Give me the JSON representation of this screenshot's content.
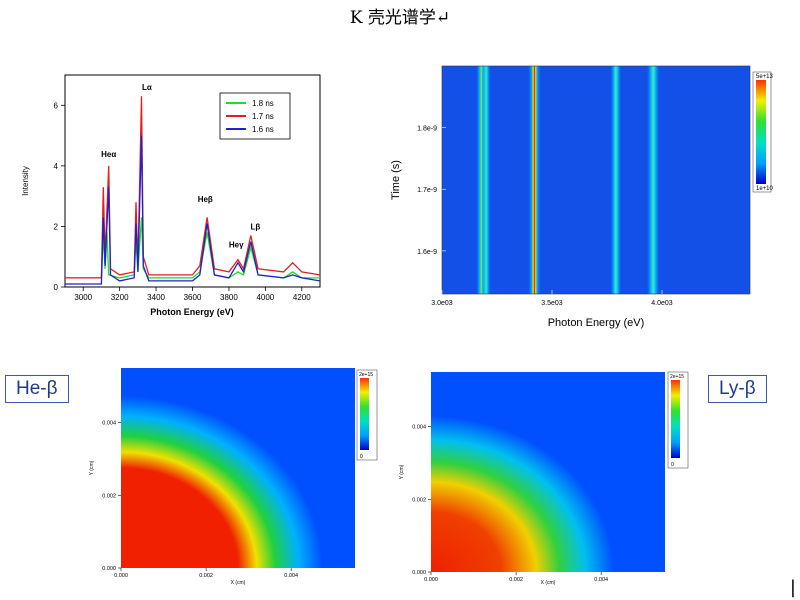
{
  "page": {
    "title": "K 壳光谱学↵",
    "edge_mark": "|"
  },
  "chart_data": [
    {
      "type": "line",
      "xlabel": "Photon Energy (eV)",
      "ylabel": "Intensity",
      "xlim": [
        2900,
        4300
      ],
      "ylim": [
        0,
        7
      ],
      "xticks": [
        "3000",
        "3200",
        "3400",
        "3600",
        "3800",
        "4000",
        "4200"
      ],
      "yticks": [
        "0",
        "2",
        "4",
        "6"
      ],
      "legend": {
        "position": "top-right"
      },
      "series": [
        {
          "name": "1.8 ns",
          "color": "#22dd22",
          "points": [
            [
              2900,
              0.3
            ],
            [
              3100,
              0.3
            ],
            [
              3110,
              1.7
            ],
            [
              3120,
              0.6
            ],
            [
              3130,
              1.8
            ],
            [
              3140,
              0.4
            ],
            [
              3200,
              0.3
            ],
            [
              3280,
              0.4
            ],
            [
              3290,
              1.6
            ],
            [
              3300,
              0.5
            ],
            [
              3320,
              2.3
            ],
            [
              3330,
              0.6
            ],
            [
              3360,
              0.3
            ],
            [
              3600,
              0.3
            ],
            [
              3640,
              0.5
            ],
            [
              3680,
              1.8
            ],
            [
              3720,
              0.4
            ],
            [
              3800,
              0.3
            ],
            [
              3850,
              0.5
            ],
            [
              3880,
              0.4
            ],
            [
              3920,
              1.3
            ],
            [
              3960,
              0.4
            ],
            [
              4100,
              0.3
            ],
            [
              4150,
              0.5
            ],
            [
              4200,
              0.3
            ],
            [
              4300,
              0.3
            ]
          ]
        },
        {
          "name": "1.7 ns",
          "color": "#e02020",
          "points": [
            [
              2900,
              0.3
            ],
            [
              3100,
              0.3
            ],
            [
              3110,
              3.3
            ],
            [
              3120,
              1.0
            ],
            [
              3140,
              4.0
            ],
            [
              3150,
              0.6
            ],
            [
              3200,
              0.4
            ],
            [
              3280,
              0.5
            ],
            [
              3290,
              2.8
            ],
            [
              3300,
              0.7
            ],
            [
              3320,
              6.3
            ],
            [
              3330,
              1.0
            ],
            [
              3360,
              0.4
            ],
            [
              3600,
              0.4
            ],
            [
              3640,
              0.7
            ],
            [
              3680,
              2.3
            ],
            [
              3720,
              0.6
            ],
            [
              3800,
              0.5
            ],
            [
              3850,
              0.9
            ],
            [
              3880,
              0.6
            ],
            [
              3920,
              1.7
            ],
            [
              3960,
              0.6
            ],
            [
              4100,
              0.5
            ],
            [
              4150,
              0.8
            ],
            [
              4200,
              0.5
            ],
            [
              4300,
              0.4
            ]
          ]
        },
        {
          "name": "1.6 ns",
          "color": "#2020cc",
          "points": [
            [
              2900,
              0.1
            ],
            [
              3100,
              0.1
            ],
            [
              3110,
              2.3
            ],
            [
              3120,
              0.7
            ],
            [
              3140,
              3.3
            ],
            [
              3150,
              0.4
            ],
            [
              3200,
              0.2
            ],
            [
              3280,
              0.3
            ],
            [
              3290,
              2.1
            ],
            [
              3300,
              0.5
            ],
            [
              3320,
              5.0
            ],
            [
              3330,
              0.7
            ],
            [
              3360,
              0.2
            ],
            [
              3600,
              0.2
            ],
            [
              3640,
              0.4
            ],
            [
              3680,
              2.1
            ],
            [
              3720,
              0.4
            ],
            [
              3800,
              0.3
            ],
            [
              3850,
              0.8
            ],
            [
              3880,
              0.5
            ],
            [
              3920,
              1.5
            ],
            [
              3960,
              0.4
            ],
            [
              4100,
              0.3
            ],
            [
              4150,
              0.4
            ],
            [
              4200,
              0.3
            ],
            [
              4300,
              0.2
            ]
          ]
        }
      ],
      "annotations": [
        {
          "text": "Heα",
          "x": 3140,
          "y": 4.3
        },
        {
          "text": "Lα",
          "x": 3350,
          "y": 6.5
        },
        {
          "text": "Heβ",
          "x": 3670,
          "y": 2.8
        },
        {
          "text": "Heγ",
          "x": 3840,
          "y": 1.3
        },
        {
          "text": "Lβ",
          "x": 3945,
          "y": 1.9
        }
      ]
    },
    {
      "type": "heatmap",
      "xlabel": "Photon Energy (eV)",
      "ylabel": "Time (s)",
      "xlim": [
        3000,
        4400
      ],
      "ylim": [
        1.53e-09,
        1.9e-09
      ],
      "xticks": [
        {
          "v": 3000,
          "label": "3.0e03"
        },
        {
          "v": 3500,
          "label": "3.5e03"
        },
        {
          "v": 4000,
          "label": "4.0e03"
        }
      ],
      "yticks": [
        {
          "v": 1.6e-09,
          "label": "1.6e-9"
        },
        {
          "v": 1.7e-09,
          "label": "1.7e-9"
        },
        {
          "v": 1.8e-09,
          "label": "1.8e-9"
        }
      ],
      "colorbar": {
        "max_label": "5e+13",
        "min_label": "1e+10"
      },
      "lines": [
        {
          "x": 3180,
          "width": 12,
          "intensity": 0.55
        },
        {
          "x": 3200,
          "width": 10,
          "intensity": 0.5
        },
        {
          "x": 3420,
          "width": 14,
          "intensity": 0.95
        },
        {
          "x": 3790,
          "width": 12,
          "intensity": 0.45
        },
        {
          "x": 3960,
          "width": 14,
          "intensity": 0.4
        }
      ]
    },
    {
      "type": "heatmap",
      "label": "He-β",
      "xlabel": "X (cm)",
      "ylabel": "Y (cm)",
      "xlim": [
        0,
        0.0055
      ],
      "ylim": [
        0,
        0.0055
      ],
      "xticks": [
        "0.000",
        "0.002",
        "0.004"
      ],
      "yticks": [
        "0.000",
        "0.002",
        "0.004"
      ],
      "colorbar": {
        "max_label": "2e+15",
        "min_label": "0"
      },
      "hot_radius": 0.0032
    },
    {
      "type": "heatmap",
      "label": "Ly-β",
      "xlabel": "X (cm)",
      "ylabel": "Y (cm)",
      "xlim": [
        0,
        0.0055
      ],
      "ylim": [
        0,
        0.0055
      ],
      "xticks": [
        "0.000",
        "0.002",
        "0.004"
      ],
      "yticks": [
        "0.000",
        "0.002",
        "0.004"
      ],
      "colorbar": {
        "max_label": "2e+15",
        "min_label": "0"
      },
      "hot_radius": 0.0026
    }
  ]
}
